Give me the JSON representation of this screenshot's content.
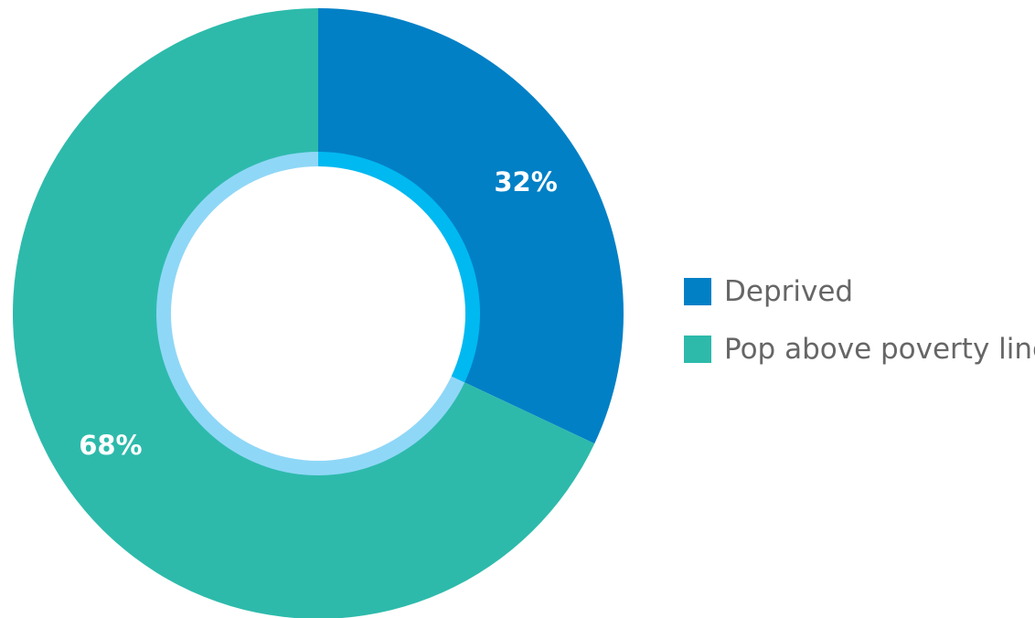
{
  "chart_data": {
    "type": "pie",
    "variant": "donut",
    "title": "",
    "categories": [
      "Deprived",
      "Pop above poverty line"
    ],
    "values": [
      32,
      68
    ],
    "value_labels": [
      "32%",
      "68%"
    ],
    "colors": [
      "#0280c6",
      "#2dbaab"
    ],
    "inner_ring_colors": [
      "#00b9f1",
      "#8fd7f7"
    ],
    "start_angle_deg": 0,
    "direction": "clockwise",
    "legend_position": "right"
  }
}
